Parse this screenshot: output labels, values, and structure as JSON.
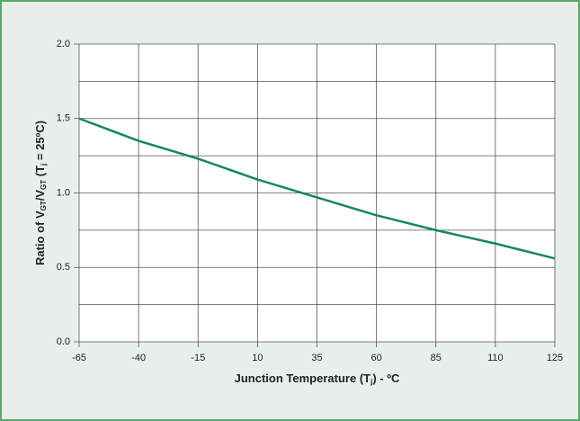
{
  "chart_data": {
    "type": "line",
    "categories": [
      "-65",
      "-40",
      "-15",
      "10",
      "35",
      "60",
      "85",
      "110",
      "125"
    ],
    "series": [
      {
        "color": "#13895a",
        "values": [
          1.5,
          1.35,
          1.23,
          1.09,
          0.97,
          0.85,
          0.75,
          0.66,
          0.56
        ]
      }
    ],
    "ylim": [
      0,
      2
    ],
    "yticks": [
      {
        "value": 0,
        "label": "0.0"
      },
      {
        "value": 0.5,
        "label": "0.5"
      },
      {
        "value": 1,
        "label": "1.0"
      },
      {
        "value": 1.5,
        "label": "1.5"
      },
      {
        "value": 2,
        "label": "2.0"
      }
    ],
    "minor_yticks": [
      0.25,
      0.75,
      1.25,
      1.75
    ],
    "grid": true,
    "xlabel": [
      {
        "text": "Junction Temperature (T"
      },
      {
        "text": "j",
        "sub": true
      },
      {
        "text": ") - ºC"
      }
    ],
    "ylabel": [
      {
        "text": "Ratio of  V"
      },
      {
        "text": "GT",
        "sub": true
      },
      {
        "text": "/V"
      },
      {
        "text": "GT",
        "sub": true
      },
      {
        "text": " (T"
      },
      {
        "text": "j",
        "sub": true
      },
      {
        "text": " = 25ºC)"
      }
    ]
  }
}
